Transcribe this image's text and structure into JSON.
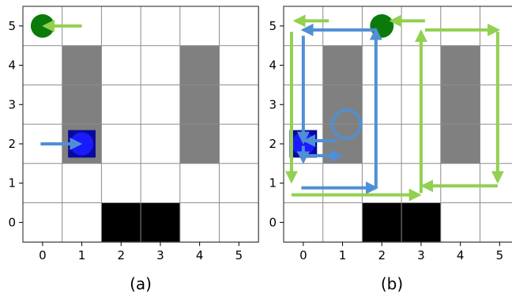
{
  "colors": {
    "grid_line": "#8c8c8c",
    "wall": "#808080",
    "pit": "#000000",
    "goal": "#0a7a0a",
    "agent_square": "#0a0a9a",
    "agent_ball": "#1a1aff",
    "blue_arrow": "#4f8fd6",
    "green_arrow": "#92d050"
  },
  "icons": {
    "goal": "goal-circle-icon",
    "agent": "agent-ball-icon",
    "wall": "wall-block",
    "pit": "pit-block"
  },
  "grid": {
    "cols": [
      0,
      1,
      2,
      3,
      4,
      5
    ],
    "rows": [
      0,
      1,
      2,
      3,
      4,
      5
    ],
    "walls": [
      {
        "col": 1,
        "rows": [
          2,
          4
        ]
      },
      {
        "col": 4,
        "rows": [
          2,
          4
        ]
      }
    ],
    "pits": [
      {
        "col": 2,
        "row": 0
      },
      {
        "col": 3,
        "row": 0
      }
    ],
    "goal": {
      "col": 0,
      "row": 5
    },
    "agent": {
      "col": 1,
      "row": 2
    }
  },
  "panels": [
    {
      "id": "a",
      "caption": "(a)",
      "goal": {
        "col": 0,
        "row": 5
      },
      "agent": {
        "col": 1,
        "row": 2
      },
      "pits": [
        {
          "col": 2,
          "row": 0
        },
        {
          "col": 3,
          "row": 0
        }
      ],
      "walls": [
        {
          "col": 1,
          "rows": [
            2,
            4
          ]
        },
        {
          "col": 4,
          "rows": [
            2,
            4
          ]
        }
      ],
      "arrows": [
        {
          "color": "blue",
          "from": [
            -0.05,
            2
          ],
          "to": [
            0.95,
            2
          ]
        },
        {
          "color": "green",
          "from": [
            1,
            5
          ],
          "to": [
            0.05,
            5
          ]
        }
      ],
      "loops": []
    },
    {
      "id": "b",
      "caption": "(b)",
      "goal": {
        "col": 2,
        "row": 5
      },
      "agent": {
        "col": 0,
        "row": 2
      },
      "pits": [
        {
          "col": 2,
          "row": 0
        },
        {
          "col": 3,
          "row": 0
        }
      ],
      "walls": [
        {
          "col": 1,
          "rows": [
            2,
            4
          ]
        },
        {
          "col": 4,
          "rows": [
            2,
            4
          ]
        }
      ],
      "arrows": [
        {
          "color": "blue",
          "from": [
            1.85,
            4.9
          ],
          "to": [
            0,
            4.9
          ]
        },
        {
          "color": "blue",
          "from": [
            0,
            4.75
          ],
          "to": [
            0,
            2.05
          ]
        },
        {
          "color": "blue",
          "from": [
            0.85,
            2.08
          ],
          "to": [
            0.05,
            2.08
          ]
        },
        {
          "color": "blue",
          "from": [
            0,
            1.95
          ],
          "to": [
            0,
            1.55
          ]
        },
        {
          "color": "blue",
          "from": [
            0,
            1.7
          ],
          "to": [
            0.95,
            1.7
          ]
        },
        {
          "color": "blue",
          "from": [
            -0.05,
            0.88
          ],
          "to": [
            1.85,
            0.88
          ]
        },
        {
          "color": "blue",
          "from": [
            1.85,
            0.88
          ],
          "to": [
            1.85,
            4.9
          ]
        },
        {
          "color": "green",
          "from": [
            0.65,
            5.13
          ],
          "to": [
            -0.2,
            5.13
          ]
        },
        {
          "color": "green",
          "from": [
            -0.3,
            4.85
          ],
          "to": [
            -0.3,
            1.05
          ]
        },
        {
          "color": "green",
          "from": [
            -0.3,
            0.7
          ],
          "to": [
            2.95,
            0.7
          ]
        },
        {
          "color": "green",
          "from": [
            3.0,
            0.75
          ],
          "to": [
            3.0,
            4.85
          ]
        },
        {
          "color": "green",
          "from": [
            3.1,
            4.9
          ],
          "to": [
            4.95,
            4.9
          ]
        },
        {
          "color": "green",
          "from": [
            4.95,
            4.85
          ],
          "to": [
            4.95,
            1.05
          ]
        },
        {
          "color": "green",
          "from": [
            4.95,
            0.93
          ],
          "to": [
            3.05,
            0.93
          ]
        },
        {
          "color": "green",
          "from": [
            3.1,
            5.13
          ],
          "to": [
            2.25,
            5.13
          ]
        }
      ],
      "loops": [
        {
          "color": "blue",
          "center": [
            1.1,
            2.5
          ],
          "radius": 0.36
        }
      ]
    }
  ]
}
